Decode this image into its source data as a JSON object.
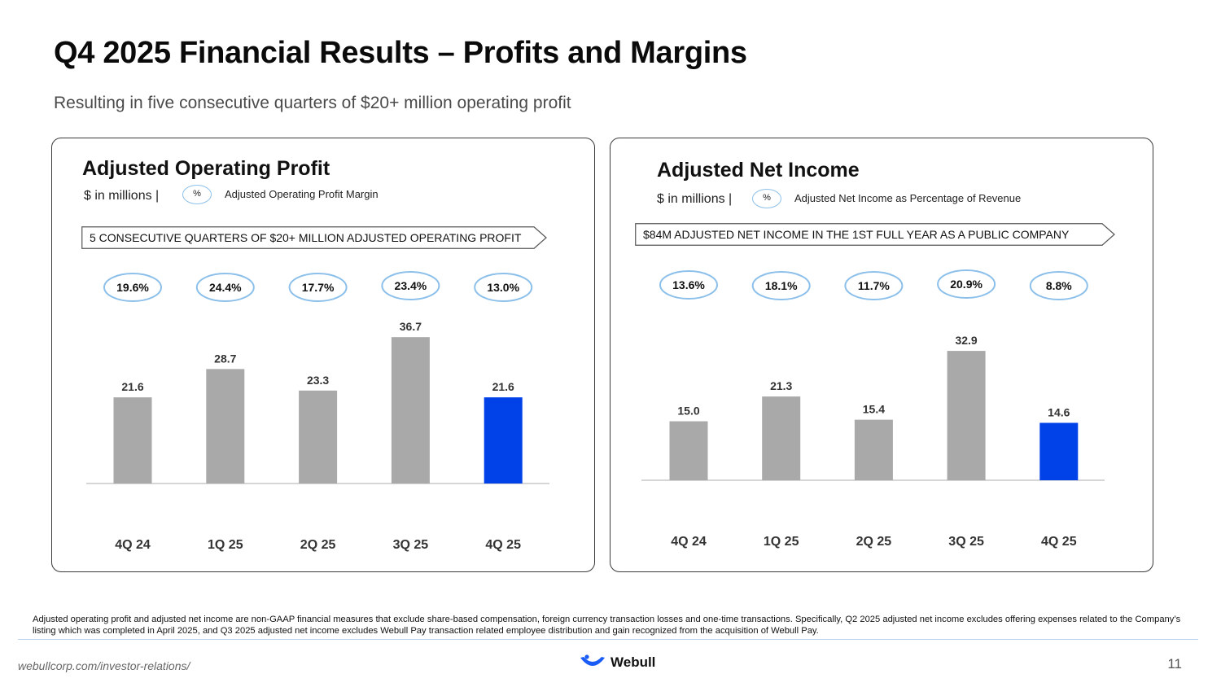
{
  "slide": {
    "title": "Q4 2025 Financial Results – Profits and Margins",
    "subtitle": "Resulting in five consecutive quarters of $20+ million operating profit",
    "footnote": "Adjusted operating profit and adjusted net income are non-GAAP financial measures that exclude share-based compensation, foreign currency transaction losses and one-time transactions. Specifically, Q2 2025 adjusted net income excludes offering expenses related to the Company’s listing which was completed in April 2025, and Q3 2025 adjusted net income excludes Webull Pay transaction related employee distribution and gain recognized from the acquisition of Webull Pay.",
    "url": "webullcorp.com/investor-relations/",
    "logo_text": "Webull",
    "page_number": "11",
    "colors": {
      "bar_default": "#a9a9a9",
      "bar_highlight": "#0041e8",
      "margin_oval": "#8cc0ea",
      "logo": "#1a5cf5"
    }
  },
  "panels": {
    "operating_profit": {
      "title": "Adjusted Operating Profit",
      "units": "$ in millions  |",
      "pct_symbol": "%",
      "key_label": "Adjusted Operating Profit Margin",
      "banner": "5 CONSECUTIVE QUARTERS OF $20+ MILLION ADJUSTED OPERATING PROFIT"
    },
    "net_income": {
      "title": "Adjusted Net Income",
      "units": "$ in millions  |",
      "pct_symbol": "%",
      "key_label": "Adjusted Net Income as Percentage of Revenue",
      "banner": "$84M ADJUSTED NET INCOME IN THE 1ST FULL YEAR AS A PUBLIC COMPANY"
    }
  },
  "chart_data": [
    {
      "type": "bar",
      "id": "operating",
      "title": "Adjusted Operating Profit",
      "ylabel": "$ in millions",
      "categories": [
        "4Q 24",
        "1Q 25",
        "2Q 25",
        "3Q 25",
        "4Q 25"
      ],
      "values": [
        21.6,
        28.7,
        23.3,
        36.7,
        21.6
      ],
      "value_labels": [
        "21.6",
        "28.7",
        "23.3",
        "36.7",
        "21.6"
      ],
      "margins": [
        "19.6%",
        "24.4%",
        "17.7%",
        "23.4%",
        "13.0%"
      ],
      "highlight_index": 4,
      "ylim": [
        0,
        40
      ]
    },
    {
      "type": "bar",
      "id": "netincome",
      "title": "Adjusted Net Income",
      "ylabel": "$ in millions",
      "categories": [
        "4Q 24",
        "1Q 25",
        "2Q 25",
        "3Q 25",
        "4Q 25"
      ],
      "values": [
        15.0,
        21.3,
        15.4,
        32.9,
        14.6
      ],
      "value_labels": [
        "15.0",
        "21.3",
        "15.4",
        "32.9",
        "14.6"
      ],
      "margins": [
        "13.6%",
        "18.1%",
        "11.7%",
        "20.9%",
        "8.8%"
      ],
      "highlight_index": 4,
      "ylim": [
        0,
        40
      ]
    }
  ]
}
